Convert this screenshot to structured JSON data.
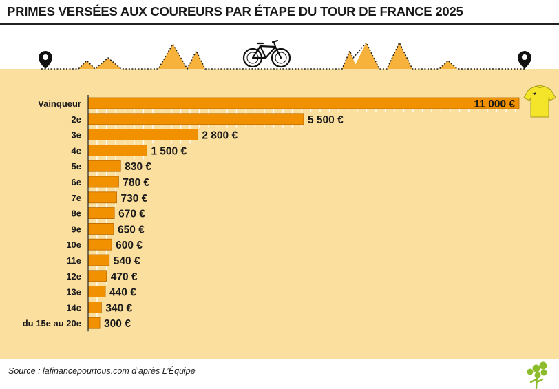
{
  "title": "PRIMES VERSÉES AUX COUREURS PAR ÉTAPE DU TOUR DE FRANCE 2025",
  "source": "Source : lafinancepourtous.com d’après L’Équipe",
  "colors": {
    "panel_bg": "#fbdf9e",
    "bar_fill": "#f19100",
    "bar_stroke": "#b86800",
    "mountain_fill": "#f7b23c",
    "jersey": "#f5e52a",
    "logo_green": "#8cbc2c",
    "text": "#1a1a1a"
  },
  "decorations": {
    "start_marker": "map-pin-icon",
    "bike": "bicycle-icon",
    "finish_marker": "map-pin-icon",
    "jersey": "yellow-jersey-icon",
    "logo": "tree-logo-icon"
  },
  "chart_data": {
    "type": "bar",
    "orientation": "horizontal",
    "title": "PRIMES VERSÉES AUX COUREURS PAR ÉTAPE DU TOUR DE FRANCE 2025",
    "categories": [
      "Vainqueur",
      "2e",
      "3e",
      "4e",
      "5e",
      "6e",
      "7e",
      "8e",
      "9e",
      "10e",
      "11e",
      "12e",
      "13e",
      "14e",
      "du 15e au 20e"
    ],
    "values": [
      11000,
      5500,
      2800,
      1500,
      830,
      780,
      730,
      670,
      650,
      600,
      540,
      470,
      440,
      340,
      300
    ],
    "value_labels": [
      "11 000 €",
      "5 500 €",
      "2 800 €",
      "1 500 €",
      "830 €",
      "780 €",
      "730 €",
      "670 €",
      "650 €",
      "600 €",
      "540 €",
      "470 €",
      "440 €",
      "340 €",
      "300 €"
    ],
    "unit": "€",
    "xlim": [
      0,
      11000
    ],
    "grid": true,
    "legend": "none"
  }
}
